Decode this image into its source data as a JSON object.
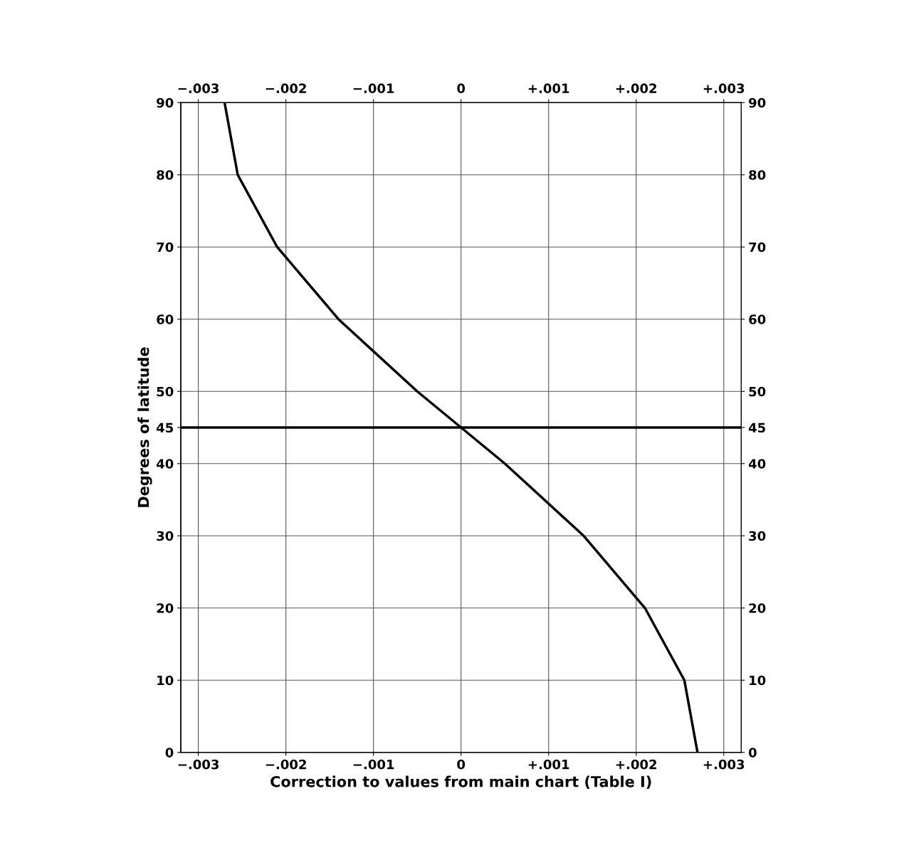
{
  "chart_data": {
    "type": "line",
    "xlabel": "Correction to values from main chart (Table I)",
    "ylabel": "Degrees of latitude",
    "series": [
      {
        "color": "#000000",
        "x": [
          -0.0027,
          -0.00255,
          -0.0021,
          -0.0014,
          -0.0005,
          0,
          0.0005,
          0.0014,
          0.0021,
          0.00255,
          0.0027
        ],
        "values": [
          90,
          80,
          70,
          60,
          50,
          45,
          40,
          30,
          20,
          10,
          0
        ]
      }
    ],
    "xlim": [
      -0.0032,
      0.0032
    ],
    "ylim": [
      0,
      90
    ],
    "xticks": [
      {
        "value": -0.003,
        "label": "−.003"
      },
      {
        "value": -0.002,
        "label": "−.002"
      },
      {
        "value": -0.001,
        "label": "−.001"
      },
      0,
      {
        "value": 0.001,
        "label": "+.001"
      },
      {
        "value": 0.002,
        "label": "+.002"
      },
      {
        "value": 0.003,
        "label": "+.003"
      }
    ],
    "x2lim": [
      -0.0032,
      0.0032
    ],
    "x2ticks": [
      {
        "value": -0.003,
        "label": "−.003"
      },
      {
        "value": -0.002,
        "label": "−.002"
      },
      {
        "value": -0.001,
        "label": "−.001"
      },
      0,
      {
        "value": 0.001,
        "label": "+.001"
      },
      {
        "value": 0.002,
        "label": "+.002"
      },
      {
        "value": 0.003,
        "label": "+.003"
      }
    ],
    "yticks": [
      0,
      10,
      20,
      30,
      40,
      45,
      50,
      60,
      70,
      80,
      90
    ],
    "y2lim": [
      0,
      90
    ],
    "y2ticks": [
      0,
      10,
      20,
      30,
      40,
      45,
      50,
      60,
      70,
      80,
      90
    ],
    "ref_lines": [
      {
        "axis": "y",
        "value": 45,
        "color": "#000000"
      }
    ],
    "grid": true,
    "marker": "none",
    "line_style": "solid"
  }
}
